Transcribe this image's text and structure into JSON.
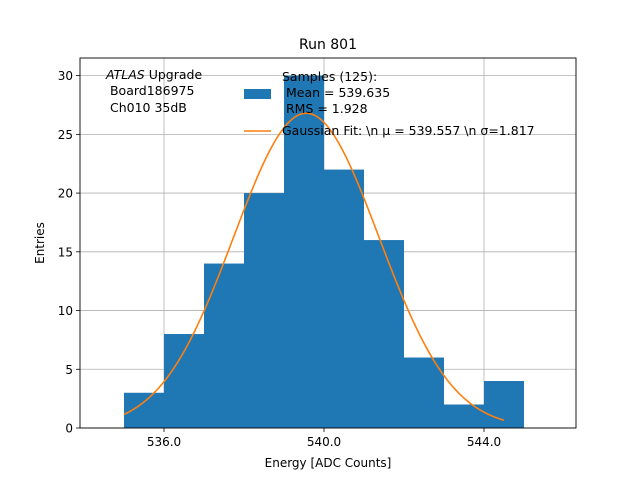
{
  "chart_data": {
    "type": "bar",
    "title": "Run 801",
    "xlabel": "Energy [ADC Counts]",
    "ylabel": "Entries",
    "xlim": [
      533.9,
      546.3
    ],
    "ylim": [
      0,
      31.5
    ],
    "grid": true,
    "xticks": [
      536.0,
      540.0,
      544.0
    ],
    "xtick_labels": [
      "536.0",
      "540.0",
      "544.0"
    ],
    "yticks": [
      0,
      5,
      10,
      15,
      20,
      25,
      30
    ],
    "ytick_labels": [
      "0",
      "5",
      "10",
      "15",
      "20",
      "25",
      "30"
    ],
    "histogram": {
      "bin_edges": [
        535,
        536,
        537,
        538,
        539,
        540,
        541,
        542,
        543,
        544,
        545
      ],
      "counts": [
        3,
        8,
        14,
        20,
        30,
        22,
        16,
        6,
        2,
        4
      ],
      "color": "#1f77b4"
    },
    "fit": {
      "type": "gaussian",
      "mu": 539.557,
      "sigma": 1.817,
      "amplitude": 26.8,
      "x_range": [
        535.0,
        544.5
      ],
      "color": "#ff7f0e"
    },
    "annotation_lines": [
      {
        "italic": "ATLAS",
        "text": " Upgrade"
      },
      {
        "italic": "",
        "text": " Board186975"
      },
      {
        "italic": "",
        "text": " Ch010 35dB"
      }
    ],
    "legend": {
      "placement": "top-right",
      "entries": [
        {
          "kind": "patch",
          "lines": [
            "Samples (125):",
            " Mean = 539.635",
            " RMS = 1.928"
          ]
        },
        {
          "kind": "line",
          "lines": [
            "Gaussian Fit: \\n μ = 539.557 \\n σ=1.817"
          ]
        }
      ]
    }
  }
}
